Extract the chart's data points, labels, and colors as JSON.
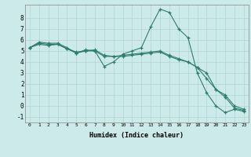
{
  "xlabel": "Humidex (Indice chaleur)",
  "xlim": [
    -0.5,
    23.5
  ],
  "ylim": [
    -1.5,
    9.2
  ],
  "yticks": [
    -1,
    0,
    1,
    2,
    3,
    4,
    5,
    6,
    7,
    8
  ],
  "xticks": [
    0,
    1,
    2,
    3,
    4,
    5,
    6,
    7,
    8,
    9,
    10,
    11,
    12,
    13,
    14,
    15,
    16,
    17,
    18,
    19,
    20,
    21,
    22,
    23
  ],
  "bg_color": "#cceaea",
  "line_color": "#2d7d6e",
  "grid_color": "#b0d4d4",
  "series1_x": [
    0,
    1,
    2,
    3,
    4,
    5,
    6,
    7,
    8,
    9,
    10,
    11,
    12,
    13,
    14,
    15,
    16,
    17,
    18,
    19,
    20,
    21,
    22,
    23
  ],
  "series1_y": [
    5.3,
    5.8,
    5.7,
    5.7,
    5.3,
    4.8,
    5.1,
    5.0,
    3.6,
    4.0,
    4.7,
    5.0,
    5.3,
    7.2,
    8.8,
    8.5,
    7.0,
    6.2,
    3.0,
    1.2,
    0.0,
    -0.6,
    -0.3,
    -0.5
  ],
  "series2_x": [
    0,
    1,
    2,
    3,
    4,
    5,
    6,
    7,
    8,
    9,
    10,
    11,
    12,
    13,
    14,
    15,
    16,
    17,
    18,
    19,
    20,
    21,
    22,
    23
  ],
  "series2_y": [
    5.3,
    5.7,
    5.6,
    5.6,
    5.2,
    4.9,
    5.0,
    5.0,
    4.5,
    4.5,
    4.5,
    4.6,
    4.7,
    4.8,
    4.9,
    4.5,
    4.2,
    4.0,
    3.5,
    3.0,
    1.5,
    1.0,
    0.0,
    -0.3
  ],
  "series3_x": [
    0,
    1,
    2,
    3,
    4,
    5,
    6,
    7,
    8,
    9,
    10,
    11,
    12,
    13,
    14,
    15,
    16,
    17,
    18,
    19,
    20,
    21,
    22,
    23
  ],
  "series3_y": [
    5.3,
    5.6,
    5.5,
    5.6,
    5.2,
    4.8,
    5.0,
    5.1,
    4.6,
    4.5,
    4.6,
    4.7,
    4.8,
    4.9,
    5.0,
    4.6,
    4.3,
    4.0,
    3.5,
    2.5,
    1.5,
    0.8,
    -0.2,
    -0.4
  ]
}
